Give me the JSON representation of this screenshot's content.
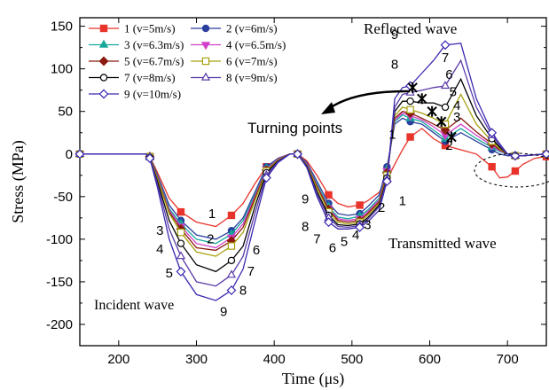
{
  "chart_data": {
    "type": "line",
    "xlabel": "Time (μs)",
    "ylabel": "Stress (MPa)",
    "xlim": [
      150,
      750
    ],
    "ylim": [
      -225,
      160
    ],
    "xticks": [
      200,
      300,
      400,
      500,
      600,
      700
    ],
    "yticks": [
      150,
      100,
      50,
      0,
      -50,
      -100,
      -150,
      -200
    ],
    "legend_position": "top-left",
    "grid": false,
    "x": [
      150,
      195,
      235,
      240,
      250,
      265,
      280,
      300,
      325,
      345,
      360,
      375,
      390,
      405,
      420,
      430,
      442,
      455,
      470,
      482,
      495,
      510,
      520,
      535,
      545,
      555,
      565,
      575,
      590,
      605,
      620,
      640,
      660,
      680,
      690,
      700,
      710,
      720,
      735,
      750
    ],
    "series": [
      {
        "name": "1 (v=5m/s)",
        "color": "#e8332a",
        "marker": "square",
        "values": [
          0,
          0,
          0,
          -3,
          -22,
          -52,
          -68,
          -80,
          -85,
          -72,
          -58,
          -35,
          -15,
          -5,
          0,
          0,
          -8,
          -25,
          -48,
          -58,
          -62,
          -60,
          -55,
          -45,
          -30,
          -12,
          5,
          20,
          30,
          18,
          10,
          5,
          0,
          -15,
          -28,
          -27,
          -20,
          -12,
          -5,
          -3
        ]
      },
      {
        "name": "2 (v=6m/s)",
        "color": "#2a3f9e",
        "marker": "circle",
        "values": [
          0,
          0,
          0,
          -3,
          -25,
          -60,
          -78,
          -95,
          -100,
          -90,
          -75,
          -45,
          -15,
          -5,
          0,
          0,
          -10,
          -32,
          -58,
          -70,
          -72,
          -70,
          -62,
          -48,
          -15,
          35,
          42,
          38,
          35,
          25,
          15,
          25,
          15,
          5,
          0,
          -2,
          -2,
          -2,
          -1,
          0
        ]
      },
      {
        "name": "3 (v=6.3m/s)",
        "color": "#17a89a",
        "marker": "triangle",
        "values": [
          0,
          0,
          0,
          -3,
          -27,
          -64,
          -82,
          -100,
          -105,
          -94,
          -78,
          -48,
          -17,
          -6,
          0,
          0,
          -12,
          -35,
          -62,
          -74,
          -76,
          -73,
          -66,
          -52,
          -18,
          38,
          46,
          42,
          38,
          28,
          18,
          30,
          18,
          8,
          3,
          0,
          -2,
          -2,
          -1,
          0
        ]
      },
      {
        "name": "4 (v=6.5m/s)",
        "color": "#d040c8",
        "marker": "triangle-down",
        "values": [
          0,
          0,
          0,
          -3,
          -28,
          -66,
          -85,
          -105,
          -110,
          -98,
          -82,
          -50,
          -18,
          -6,
          0,
          0,
          -12,
          -37,
          -64,
          -76,
          -78,
          -76,
          -68,
          -54,
          -20,
          40,
          48,
          45,
          40,
          32,
          22,
          35,
          22,
          10,
          4,
          0,
          -2,
          -2,
          -1,
          0
        ]
      },
      {
        "name": "5 (v=6.7m/s)",
        "color": "#8b1a10",
        "marker": "diamond",
        "values": [
          0,
          0,
          0,
          -3,
          -29,
          -68,
          -88,
          -110,
          -113,
          -102,
          -86,
          -52,
          -19,
          -7,
          0,
          0,
          -13,
          -38,
          -65,
          -78,
          -80,
          -78,
          -70,
          -56,
          -22,
          42,
          50,
          48,
          42,
          35,
          28,
          42,
          26,
          12,
          5,
          0,
          -2,
          -2,
          -1,
          0
        ]
      },
      {
        "name": "6 (v=7m/s)",
        "color": "#a8a010",
        "marker": "square-open",
        "values": [
          0,
          0,
          0,
          -3,
          -30,
          -70,
          -92,
          -115,
          -120,
          -108,
          -92,
          -55,
          -20,
          -7,
          0,
          0,
          -13,
          -40,
          -68,
          -80,
          -82,
          -80,
          -72,
          -58,
          -25,
          45,
          55,
          52,
          48,
          42,
          35,
          70,
          35,
          15,
          6,
          0,
          -2,
          -2,
          -1,
          0
        ]
      },
      {
        "name": "7 (v=8m/s)",
        "color": "#000000",
        "marker": "circle-open",
        "values": [
          0,
          0,
          0,
          -4,
          -33,
          -78,
          -105,
          -130,
          -138,
          -125,
          -108,
          -62,
          -22,
          -8,
          0,
          0,
          -14,
          -44,
          -72,
          -83,
          -84,
          -82,
          -75,
          -60,
          -28,
          50,
          62,
          62,
          60,
          60,
          55,
          88,
          45,
          18,
          8,
          0,
          -2,
          -2,
          -1,
          0
        ]
      },
      {
        "name": "8 (v=9m/s)",
        "color": "#5a3aa8",
        "marker": "triangle-open",
        "values": [
          0,
          0,
          0,
          -4,
          -36,
          -88,
          -120,
          -150,
          -155,
          -142,
          -120,
          -70,
          -25,
          -9,
          0,
          0,
          -15,
          -47,
          -75,
          -85,
          -86,
          -84,
          -77,
          -62,
          -30,
          55,
          70,
          72,
          75,
          78,
          80,
          110,
          55,
          22,
          10,
          0,
          -2,
          -2,
          -1,
          0
        ]
      },
      {
        "name": "9 (v=10m/s)",
        "color": "#3a2ab0",
        "marker": "diamond-open",
        "values": [
          0,
          0,
          0,
          -5,
          -40,
          -100,
          -138,
          -165,
          -172,
          -160,
          -135,
          -80,
          -28,
          -10,
          0,
          0,
          -16,
          -50,
          -80,
          -88,
          -88,
          -86,
          -80,
          -66,
          -32,
          65,
          78,
          80,
          95,
          110,
          128,
          130,
          65,
          25,
          12,
          0,
          -2,
          -2,
          -1,
          0
        ]
      }
    ],
    "turning_points": [
      [
        578,
        78
      ],
      [
        590,
        65
      ],
      [
        603,
        50
      ],
      [
        615,
        38
      ],
      [
        628,
        20
      ]
    ],
    "annotations": {
      "reflected": "Reflected wave",
      "transmitted": "Transmitted wave",
      "incident": "Incident wave",
      "turning": "Turning points"
    },
    "curve_labels": [
      {
        "text": "1",
        "x": 320,
        "y": -75
      },
      {
        "text": "2",
        "x": 318,
        "y": -105
      },
      {
        "text": "3",
        "x": 253,
        "y": -95
      },
      {
        "text": "4",
        "x": 253,
        "y": -117
      },
      {
        "text": "5",
        "x": 265,
        "y": -145
      },
      {
        "text": "6",
        "x": 377,
        "y": -118
      },
      {
        "text": "7",
        "x": 370,
        "y": -143
      },
      {
        "text": "8",
        "x": 360,
        "y": -165
      },
      {
        "text": "9",
        "x": 335,
        "y": -190
      },
      {
        "text": "9",
        "x": 440,
        "y": -58
      },
      {
        "text": "8",
        "x": 440,
        "y": -90
      },
      {
        "text": "7",
        "x": 455,
        "y": -105
      },
      {
        "text": "6",
        "x": 475,
        "y": -115
      },
      {
        "text": "5",
        "x": 490,
        "y": -108
      },
      {
        "text": "4",
        "x": 505,
        "y": -100
      },
      {
        "text": "3",
        "x": 520,
        "y": -88
      },
      {
        "text": "2",
        "x": 538,
        "y": -68
      },
      {
        "text": "1",
        "x": 565,
        "y": -60
      },
      {
        "text": "9",
        "x": 555,
        "y": 135
      },
      {
        "text": "8",
        "x": 555,
        "y": 100
      },
      {
        "text": "7",
        "x": 620,
        "y": 108
      },
      {
        "text": "6",
        "x": 625,
        "y": 88
      },
      {
        "text": "5",
        "x": 630,
        "y": 68
      },
      {
        "text": "4",
        "x": 635,
        "y": 52
      },
      {
        "text": "3",
        "x": 635,
        "y": 38
      },
      {
        "text": "2",
        "x": 625,
        "y": 5
      },
      {
        "text": "1",
        "x": 552,
        "y": 18
      }
    ]
  }
}
